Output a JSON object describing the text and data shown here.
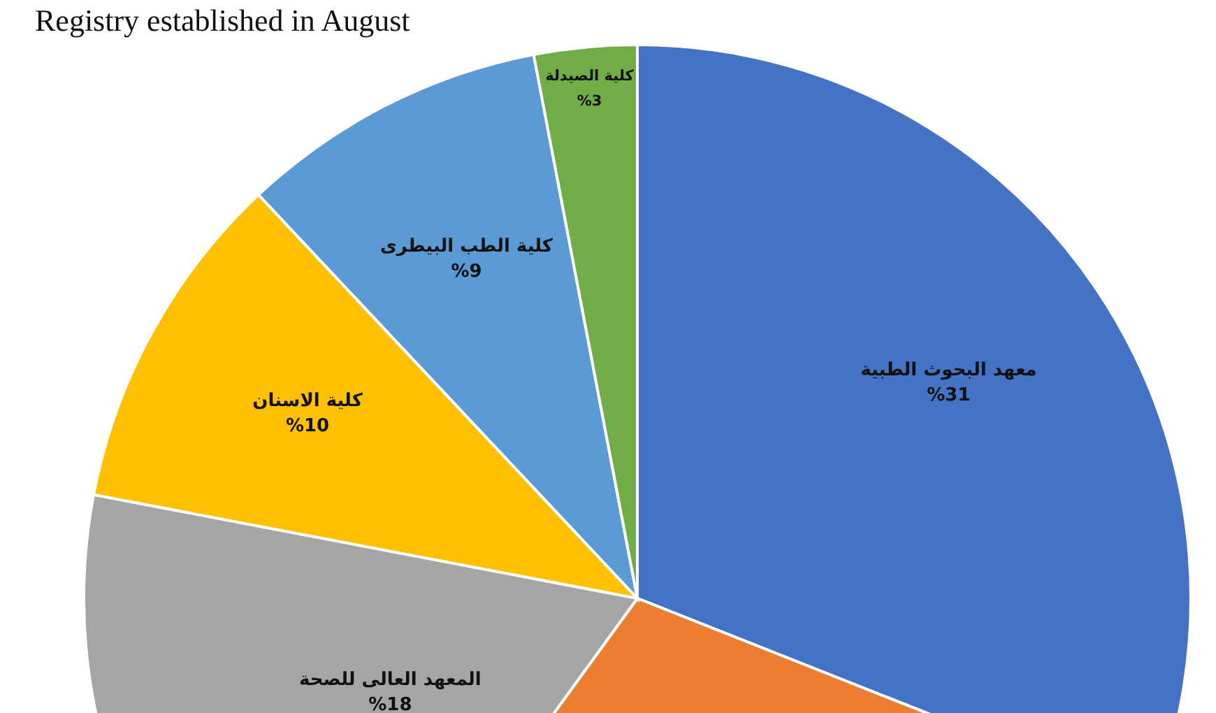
{
  "chart_data": {
    "type": "pie",
    "title": "Registry established in August",
    "categories": [
      "معهد البحوث الطبية",
      null,
      "المعهد العالى للصحة",
      "كلية الاسنان",
      "كلية الطب البيطرى",
      "كلية الصيدلة"
    ],
    "values": [
      31,
      29,
      18,
      10,
      9,
      3
    ],
    "value_labels": [
      "%31",
      null,
      "%18",
      "%10",
      "%9",
      "%3"
    ],
    "colors": [
      "#4472c4",
      "#ed7d31",
      "#a5a5a5",
      "#ffc000",
      "#5b9bd5",
      "#70ad47"
    ]
  }
}
